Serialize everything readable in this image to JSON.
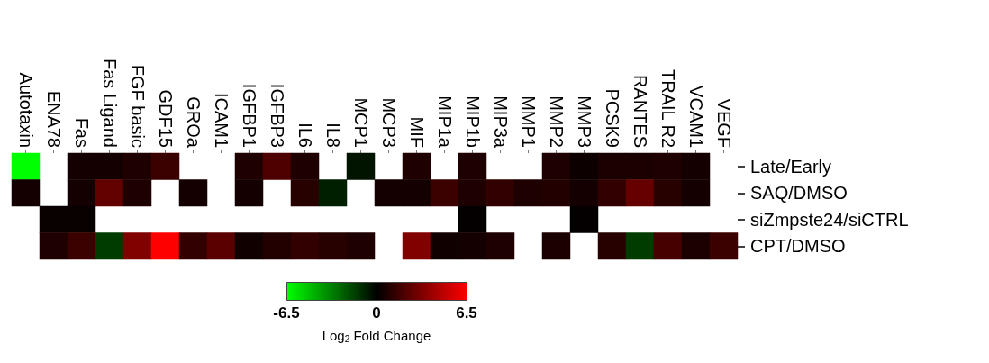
{
  "chart_data": {
    "type": "heatmap",
    "categories": [
      "Autotaxin",
      "ENA78",
      "Fas",
      "Fas Ligand",
      "FGF basic",
      "GDF15",
      "GROa",
      "ICAM1",
      "IGFBP1",
      "IGFBP3",
      "IL6",
      "IL8",
      "MCP1",
      "MCP3",
      "MIF",
      "MIP1a",
      "MIP1b",
      "MIP3a",
      "MMP1",
      "MMP2",
      "MMP3",
      "PCSK9",
      "RANTES",
      "TRAIL R2",
      "VCAM1",
      "VEGF"
    ],
    "y_categories": [
      "Late/Early",
      "SAQ/DMSO",
      "siZmpste24/siCTRL",
      "CPT/DMSO"
    ],
    "cells": [
      [
        -6.5,
        null,
        0.5,
        0.5,
        0.8,
        1.5,
        null,
        null,
        0.8,
        2.0,
        0.8,
        null,
        -0.5,
        null,
        0.8,
        null,
        0.8,
        null,
        null,
        0.8,
        0.3,
        0.7,
        0.7,
        0.8,
        0.5,
        null
      ],
      [
        0.5,
        null,
        0.5,
        2.5,
        0.8,
        null,
        0.5,
        null,
        0.5,
        null,
        1.0,
        -0.8,
        null,
        0.5,
        0.5,
        1.5,
        0.8,
        1.3,
        0.8,
        0.9,
        0.5,
        1.3,
        2.6,
        1.0,
        0.5,
        null
      ],
      [
        null,
        0.2,
        0.2,
        null,
        null,
        null,
        null,
        null,
        null,
        null,
        null,
        null,
        null,
        null,
        null,
        null,
        0.1,
        null,
        null,
        null,
        0.1,
        null,
        null,
        null,
        null,
        null
      ],
      [
        null,
        0.8,
        1.5,
        -1.5,
        3.3,
        6.5,
        1.3,
        2.3,
        0.4,
        0.9,
        1.3,
        1.0,
        0.8,
        null,
        3.3,
        0.4,
        0.5,
        0.8,
        null,
        0.7,
        null,
        1.0,
        -1.5,
        1.8,
        0.7,
        1.5
      ]
    ],
    "clim": [
      -6.5,
      6.5
    ],
    "cticks": [
      -6.5,
      0,
      6.5
    ],
    "clabel": "Log$_{2}$ Fold Change"
  }
}
